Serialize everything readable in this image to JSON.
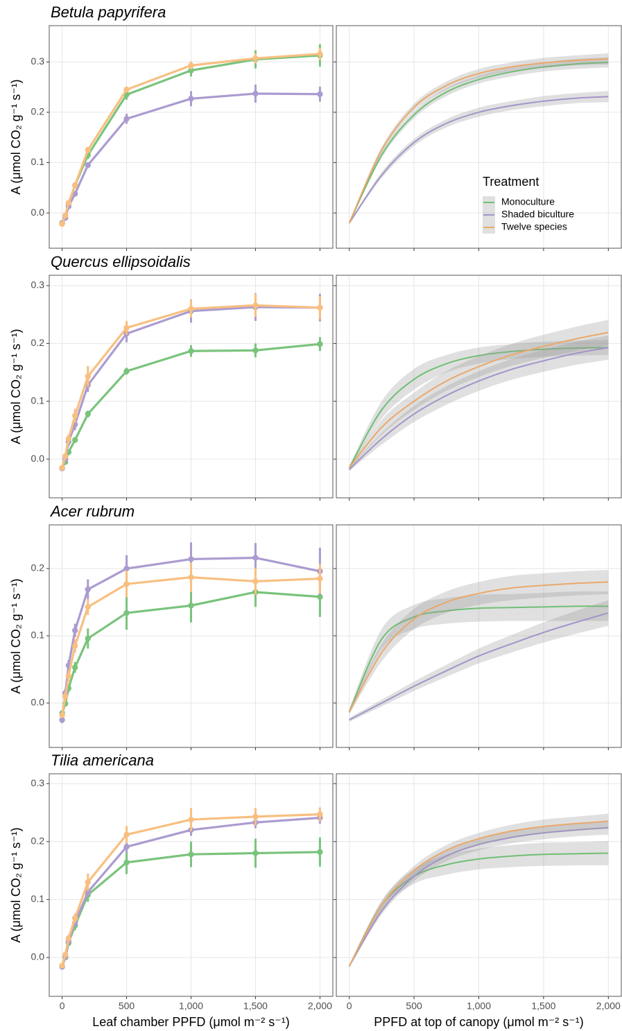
{
  "chart_data": [
    {
      "type": "line",
      "title": "Betula papyrifera",
      "y_label": "A (μmol CO₂ g⁻¹ s⁻¹)",
      "x": [
        0,
        25,
        50,
        100,
        200,
        500,
        1000,
        1500,
        2000
      ],
      "xlim": [
        -100,
        2100
      ],
      "xticks": [
        0,
        500,
        1000,
        1500,
        2000
      ],
      "ylim": [
        -0.07,
        0.372
      ],
      "yticks": [
        {
          "value": 0,
          "label": "0.0"
        },
        0.1,
        0.2,
        0.3
      ],
      "grid": true,
      "series": [
        {
          "color": "#79c37c",
          "values": [
            -0.02,
            -0.005,
            0.018,
            0.055,
            0.115,
            0.235,
            0.283,
            0.305,
            0.313
          ],
          "errors": [
            0.004,
            0.004,
            0.005,
            0.006,
            0.008,
            0.01,
            0.012,
            0.018,
            0.022
          ]
        },
        {
          "color": "#ab9bd0",
          "values": [
            -0.02,
            -0.01,
            0.013,
            0.038,
            0.095,
            0.187,
            0.227,
            0.237,
            0.236
          ],
          "errors": [
            0.004,
            0.004,
            0.004,
            0.005,
            0.006,
            0.01,
            0.015,
            0.018,
            0.015
          ]
        },
        {
          "color": "#f8bf80",
          "values": [
            -0.022,
            -0.005,
            0.02,
            0.055,
            0.125,
            0.245,
            0.293,
            0.307,
            0.316
          ],
          "errors": [
            0.004,
            0.004,
            0.004,
            0.005,
            0.006,
            0.006,
            0.008,
            0.01,
            0.012
          ]
        }
      ]
    },
    {
      "type": "line",
      "x": [
        0,
        250,
        500,
        750,
        1000,
        1250,
        1500,
        1750,
        2000
      ],
      "xlim": [
        -100,
        2100
      ],
      "xticks": [
        0,
        500,
        1000,
        1500,
        2000
      ],
      "ylim": [
        -0.07,
        0.372
      ],
      "yticks": [
        0,
        0.1,
        0.2,
        0.3
      ],
      "grid": true,
      "legend": {
        "title": "Treatment",
        "position": "right"
      },
      "series": [
        {
          "name": "Monoculture",
          "color": "#6fbf73",
          "values": [
            -0.02,
            0.115,
            0.195,
            0.24,
            0.265,
            0.28,
            0.29,
            0.296,
            0.299
          ],
          "lower": [
            -0.022,
            0.109,
            0.188,
            0.232,
            0.257,
            0.271,
            0.281,
            0.286,
            0.289
          ],
          "upper": [
            -0.018,
            0.121,
            0.202,
            0.248,
            0.273,
            0.289,
            0.299,
            0.306,
            0.309
          ]
        },
        {
          "name": "Shaded biculture",
          "color": "#a394c9",
          "values": [
            -0.02,
            0.075,
            0.14,
            0.178,
            0.2,
            0.213,
            0.222,
            0.228,
            0.231
          ],
          "lower": [
            -0.022,
            0.069,
            0.133,
            0.17,
            0.191,
            0.204,
            0.212,
            0.218,
            0.22
          ],
          "upper": [
            -0.018,
            0.081,
            0.147,
            0.186,
            0.209,
            0.222,
            0.232,
            0.238,
            0.242
          ]
        },
        {
          "name": "Twelve species",
          "color": "#eaa86b",
          "values": [
            -0.02,
            0.125,
            0.21,
            0.253,
            0.277,
            0.29,
            0.298,
            0.303,
            0.306
          ],
          "lower": [
            -0.022,
            0.119,
            0.203,
            0.245,
            0.268,
            0.281,
            0.288,
            0.293,
            0.295
          ],
          "upper": [
            -0.018,
            0.131,
            0.217,
            0.261,
            0.286,
            0.299,
            0.308,
            0.313,
            0.317
          ]
        }
      ]
    },
    {
      "type": "line",
      "title": "Quercus ellipsoidalis",
      "y_label": "A (μmol CO₂ g⁻¹ s⁻¹)",
      "x": [
        0,
        25,
        50,
        100,
        200,
        500,
        1000,
        1500,
        2000
      ],
      "xlim": [
        -100,
        2100
      ],
      "xticks": [
        0,
        500,
        1000,
        1500,
        2000
      ],
      "ylim": [
        -0.067,
        0.318
      ],
      "yticks": [
        {
          "value": 0,
          "label": "0.0"
        },
        0.1,
        0.2,
        0.3
      ],
      "grid": true,
      "series": [
        {
          "color": "#79c37c",
          "values": [
            -0.016,
            -0.005,
            0.012,
            0.033,
            0.078,
            0.152,
            0.187,
            0.188,
            0.199
          ],
          "errors": [
            0.004,
            0.004,
            0.004,
            0.005,
            0.006,
            0.006,
            0.01,
            0.012,
            0.012
          ]
        },
        {
          "color": "#ab9bd0",
          "values": [
            -0.016,
            0.0,
            0.03,
            0.06,
            0.128,
            0.217,
            0.256,
            0.263,
            0.262
          ],
          "errors": [
            0.004,
            0.005,
            0.008,
            0.01,
            0.012,
            0.015,
            0.02,
            0.024,
            0.024
          ]
        },
        {
          "color": "#f8bf80",
          "values": [
            -0.015,
            0.005,
            0.035,
            0.075,
            0.143,
            0.227,
            0.26,
            0.266,
            0.262
          ],
          "errors": [
            0.004,
            0.005,
            0.008,
            0.012,
            0.018,
            0.012,
            0.015,
            0.02,
            0.02
          ]
        }
      ]
    },
    {
      "type": "line",
      "x": [
        0,
        250,
        500,
        750,
        1000,
        1250,
        1500,
        1750,
        2000
      ],
      "xlim": [
        -100,
        2100
      ],
      "xticks": [
        0,
        500,
        1000,
        1500,
        2000
      ],
      "ylim": [
        -0.067,
        0.318
      ],
      "yticks": [
        0,
        0.1,
        0.2,
        0.3
      ],
      "grid": true,
      "series": [
        {
          "color": "#6fbf73",
          "values": [
            -0.015,
            0.085,
            0.138,
            0.165,
            0.179,
            0.186,
            0.19,
            0.192,
            0.193
          ],
          "lower": [
            -0.018,
            0.07,
            0.12,
            0.15,
            0.165,
            0.173,
            0.177,
            0.179,
            0.18
          ],
          "upper": [
            -0.012,
            0.1,
            0.156,
            0.18,
            0.193,
            0.199,
            0.203,
            0.205,
            0.206
          ]
        },
        {
          "color": "#a394c9",
          "values": [
            -0.018,
            0.035,
            0.078,
            0.11,
            0.135,
            0.155,
            0.17,
            0.183,
            0.193
          ],
          "lower": [
            -0.021,
            0.025,
            0.064,
            0.094,
            0.118,
            0.137,
            0.151,
            0.163,
            0.172
          ],
          "upper": [
            -0.015,
            0.045,
            0.092,
            0.126,
            0.152,
            0.173,
            0.189,
            0.203,
            0.214
          ]
        },
        {
          "color": "#eaa86b",
          "values": [
            -0.015,
            0.055,
            0.1,
            0.135,
            0.16,
            0.18,
            0.195,
            0.208,
            0.219
          ],
          "lower": [
            -0.018,
            0.042,
            0.085,
            0.118,
            0.142,
            0.161,
            0.175,
            0.187,
            0.197
          ],
          "upper": [
            -0.012,
            0.068,
            0.115,
            0.152,
            0.178,
            0.199,
            0.215,
            0.229,
            0.241
          ]
        }
      ]
    },
    {
      "type": "line",
      "title": "Acer rubrum",
      "y_label": "A (μmol CO₂ g⁻¹ s⁻¹)",
      "x": [
        0,
        25,
        50,
        100,
        200,
        500,
        1000,
        1500,
        2000
      ],
      "xlim": [
        -100,
        2100
      ],
      "xticks": [
        0,
        500,
        1000,
        1500,
        2000
      ],
      "ylim": [
        -0.066,
        0.265
      ],
      "yticks": [
        {
          "value": 0,
          "label": "0.0"
        },
        0.1,
        0.2
      ],
      "grid": true,
      "series": [
        {
          "color": "#79c37c",
          "values": [
            -0.015,
            -0.001,
            0.022,
            0.053,
            0.096,
            0.134,
            0.145,
            0.165,
            0.158
          ],
          "errors": [
            0.004,
            0.004,
            0.006,
            0.008,
            0.015,
            0.025,
            0.025,
            0.022,
            0.03
          ]
        },
        {
          "color": "#ab9bd0",
          "values": [
            -0.025,
            0.015,
            0.056,
            0.108,
            0.169,
            0.2,
            0.214,
            0.216,
            0.196
          ],
          "errors": [
            0.005,
            0.006,
            0.008,
            0.01,
            0.015,
            0.02,
            0.025,
            0.022,
            0.035
          ]
        },
        {
          "color": "#f8bf80",
          "values": [
            -0.018,
            0.01,
            0.04,
            0.085,
            0.143,
            0.177,
            0.187,
            0.181,
            0.185
          ],
          "errors": [
            0.004,
            0.006,
            0.008,
            0.01,
            0.012,
            0.02,
            0.022,
            0.02,
            0.022
          ]
        }
      ]
    },
    {
      "type": "line",
      "x": [
        0,
        250,
        500,
        750,
        1000,
        1250,
        1500,
        1750,
        2000
      ],
      "xlim": [
        -100,
        2100
      ],
      "xticks": [
        0,
        500,
        1000,
        1500,
        2000
      ],
      "ylim": [
        -0.066,
        0.265
      ],
      "yticks": [
        0,
        0.1,
        0.2
      ],
      "grid": true,
      "series": [
        {
          "color": "#6fbf73",
          "values": [
            -0.013,
            0.095,
            0.128,
            0.137,
            0.141,
            0.142,
            0.143,
            0.144,
            0.144
          ],
          "lower": [
            -0.017,
            0.08,
            0.11,
            0.118,
            0.121,
            0.122,
            0.122,
            0.122,
            0.122
          ],
          "upper": [
            -0.009,
            0.11,
            0.146,
            0.156,
            0.161,
            0.162,
            0.164,
            0.166,
            0.166
          ]
        },
        {
          "color": "#a394c9",
          "values": [
            -0.025,
            0.0,
            0.025,
            0.048,
            0.07,
            0.088,
            0.105,
            0.12,
            0.134
          ],
          "lower": [
            -0.028,
            -0.005,
            0.018,
            0.039,
            0.059,
            0.075,
            0.09,
            0.103,
            0.115
          ],
          "upper": [
            -0.022,
            0.005,
            0.032,
            0.057,
            0.081,
            0.101,
            0.12,
            0.137,
            0.153
          ]
        },
        {
          "color": "#eaa86b",
          "values": [
            -0.013,
            0.075,
            0.125,
            0.15,
            0.163,
            0.171,
            0.175,
            0.178,
            0.18
          ],
          "lower": [
            -0.017,
            0.062,
            0.11,
            0.134,
            0.146,
            0.153,
            0.157,
            0.16,
            0.162
          ],
          "upper": [
            -0.009,
            0.088,
            0.14,
            0.166,
            0.18,
            0.189,
            0.193,
            0.196,
            0.198
          ]
        }
      ]
    },
    {
      "type": "line",
      "title": "Tilia americana",
      "y_label": "A (μmol CO₂ g⁻¹ s⁻¹)",
      "x_label": "Leaf chamber PPFD (μmol m⁻² s⁻¹)",
      "x": [
        0,
        25,
        50,
        100,
        200,
        500,
        1000,
        1500,
        2000
      ],
      "xlim": [
        -100,
        2100
      ],
      "xticks": [
        0,
        500,
        {
          "value": 1000,
          "label": "1,000"
        },
        {
          "value": 1500,
          "label": "1,500"
        },
        {
          "value": 2000,
          "label": "2,000"
        }
      ],
      "ylim": [
        -0.067,
        0.317
      ],
      "yticks": [
        {
          "value": 0,
          "label": "0.0"
        },
        0.1,
        0.2,
        0.3
      ],
      "grid": true,
      "series": [
        {
          "color": "#79c37c",
          "values": [
            -0.015,
            0.0,
            0.025,
            0.055,
            0.108,
            0.164,
            0.178,
            0.18,
            0.182
          ],
          "errors": [
            0.004,
            0.004,
            0.005,
            0.008,
            0.012,
            0.02,
            0.022,
            0.025,
            0.025
          ]
        },
        {
          "color": "#ab9bd0",
          "values": [
            -0.016,
            0.002,
            0.028,
            0.06,
            0.113,
            0.191,
            0.22,
            0.233,
            0.241
          ],
          "errors": [
            0.003,
            0.004,
            0.005,
            0.006,
            0.008,
            0.01,
            0.01,
            0.01,
            0.01
          ]
        },
        {
          "color": "#f8bf80",
          "values": [
            -0.014,
            0.005,
            0.033,
            0.068,
            0.13,
            0.212,
            0.238,
            0.243,
            0.247
          ],
          "errors": [
            0.003,
            0.004,
            0.006,
            0.008,
            0.015,
            0.015,
            0.02,
            0.015,
            0.012
          ]
        }
      ]
    },
    {
      "type": "line",
      "x_label": "PPFD at top of canopy (μmol m⁻² s⁻¹)",
      "x": [
        0,
        250,
        500,
        750,
        1000,
        1250,
        1500,
        1750,
        2000
      ],
      "xlim": [
        -100,
        2100
      ],
      "xticks": [
        0,
        500,
        {
          "value": 1000,
          "label": "1,000"
        },
        {
          "value": 1500,
          "label": "1,500"
        },
        {
          "value": 2000,
          "label": "2,000"
        }
      ],
      "ylim": [
        -0.067,
        0.317
      ],
      "yticks": [
        0,
        0.1,
        0.2,
        0.3
      ],
      "grid": true,
      "series": [
        {
          "color": "#6fbf73",
          "values": [
            -0.015,
            0.09,
            0.14,
            0.16,
            0.17,
            0.175,
            0.178,
            0.179,
            0.18
          ],
          "lower": [
            -0.017,
            0.082,
            0.127,
            0.143,
            0.152,
            0.156,
            0.158,
            0.159,
            0.159
          ],
          "upper": [
            -0.013,
            0.098,
            0.153,
            0.177,
            0.188,
            0.194,
            0.198,
            0.199,
            0.201
          ]
        },
        {
          "color": "#a394c9",
          "values": [
            -0.015,
            0.08,
            0.14,
            0.175,
            0.195,
            0.207,
            0.215,
            0.22,
            0.224
          ],
          "lower": [
            -0.017,
            0.074,
            0.132,
            0.166,
            0.185,
            0.197,
            0.204,
            0.209,
            0.212
          ],
          "upper": [
            -0.013,
            0.086,
            0.148,
            0.184,
            0.205,
            0.217,
            0.226,
            0.231,
            0.236
          ]
        },
        {
          "color": "#eaa86b",
          "values": [
            -0.015,
            0.09,
            0.15,
            0.185,
            0.205,
            0.218,
            0.226,
            0.231,
            0.235
          ],
          "lower": [
            -0.017,
            0.083,
            0.142,
            0.176,
            0.195,
            0.207,
            0.214,
            0.219,
            0.222
          ],
          "upper": [
            -0.013,
            0.097,
            0.158,
            0.194,
            0.215,
            0.229,
            0.238,
            0.243,
            0.248
          ]
        }
      ]
    }
  ]
}
